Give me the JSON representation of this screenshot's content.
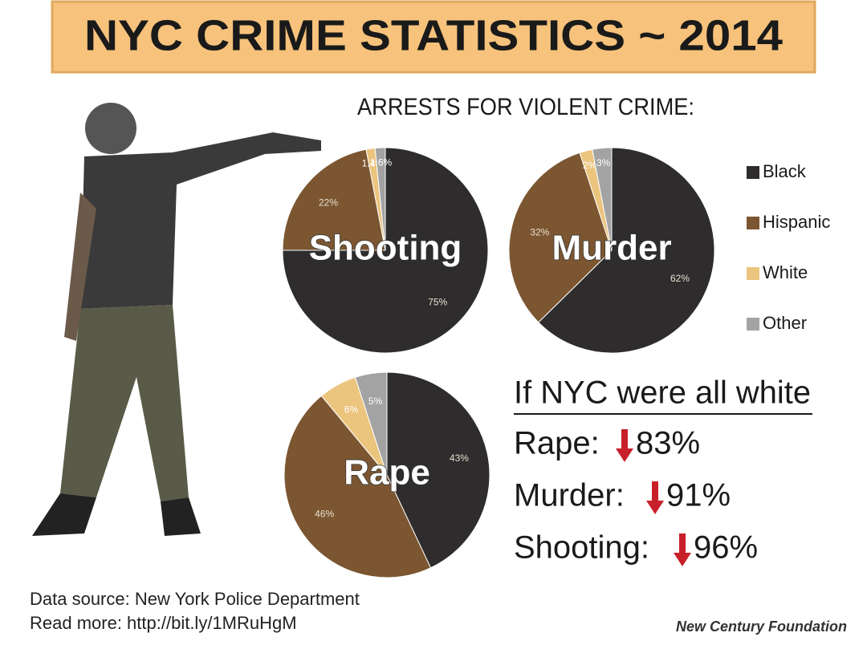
{
  "header": {
    "title": "NYC CRIME STATISTICS ~ 2014"
  },
  "subtitle": "ARRESTS FOR VIOLENT CRIME:",
  "legend": {
    "labels": [
      "Black",
      "Hispanic",
      "White",
      "Other"
    ],
    "colors": [
      "#2e2c2c",
      "#7b5631",
      "#ebc47e",
      "#a3a3a3"
    ]
  },
  "chart_data": [
    {
      "type": "pie",
      "title": "Shooting",
      "values": [
        75,
        22,
        1.4,
        1.6
      ],
      "value_labels": [
        "75%",
        "22%",
        "1.4%",
        "1.6%"
      ]
    },
    {
      "type": "pie",
      "title": "Murder",
      "values": [
        62,
        32,
        2,
        3
      ],
      "value_labels": [
        "62%",
        "32%",
        "2%",
        "3%"
      ]
    },
    {
      "type": "pie",
      "title": "Rape",
      "values": [
        43,
        46,
        6,
        5
      ],
      "value_labels": [
        "43%",
        "46%",
        "6%",
        "5%"
      ]
    }
  ],
  "side_panel": {
    "heading": "If NYC were all white",
    "rows": [
      {
        "label": "Rape:",
        "value": "83%"
      },
      {
        "label": "Murder:",
        "value": "91%"
      },
      {
        "label": "Shooting:",
        "value": "96%"
      }
    ]
  },
  "footer": {
    "source": "Data source: New York Police Department",
    "link": "Read more: http://bit.ly/1MRuHgM",
    "credit": "New Century Foundation"
  }
}
